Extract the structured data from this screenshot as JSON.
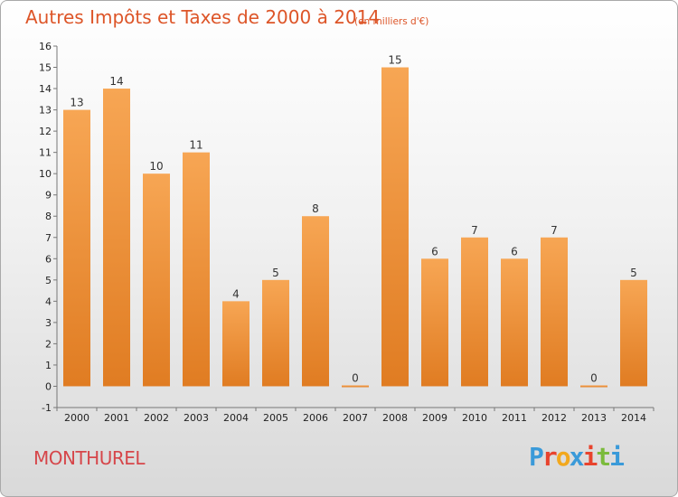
{
  "header": {
    "title": "Autres Impôts et Taxes de 2000 à 2014",
    "subtitle": "(en milliers d'€)"
  },
  "footer": {
    "commune": "MONTHUREL",
    "brand": [
      "P",
      "r",
      "o",
      "x",
      "i",
      "t",
      "i"
    ],
    "brand_colors": [
      "#3a9ad9",
      "#e8432d",
      "#f2a81d",
      "#3a9ad9",
      "#e8432d",
      "#7bbb3c",
      "#3a9ad9"
    ]
  },
  "chart_data": {
    "type": "bar",
    "categories": [
      "2000",
      "2001",
      "2002",
      "2003",
      "2004",
      "2005",
      "2006",
      "2007",
      "2008",
      "2009",
      "2010",
      "2011",
      "2012",
      "2013",
      "2014"
    ],
    "values": [
      13,
      14,
      10,
      11,
      4,
      5,
      8,
      0,
      15,
      6,
      7,
      6,
      7,
      0,
      5
    ],
    "value_labels": [
      "13",
      "14",
      "10",
      "11",
      "4",
      "5",
      "8",
      "0",
      "15",
      "6",
      "7",
      "6",
      "7",
      "0",
      "5"
    ],
    "yticks": [
      -1,
      0,
      1,
      2,
      3,
      4,
      5,
      6,
      7,
      8,
      9,
      10,
      11,
      12,
      13,
      14,
      15,
      16
    ],
    "ytick_labels": [
      "-1",
      "0",
      "1",
      "2",
      "3",
      "4",
      "5",
      "6",
      "7",
      "8",
      "9",
      "10",
      "11",
      "12",
      "13",
      "14",
      "15",
      "16"
    ],
    "ylim": [
      -1,
      16
    ],
    "grid": false,
    "bar_color_top": "#f7a654",
    "bar_color_bottom": "#e07c22"
  }
}
